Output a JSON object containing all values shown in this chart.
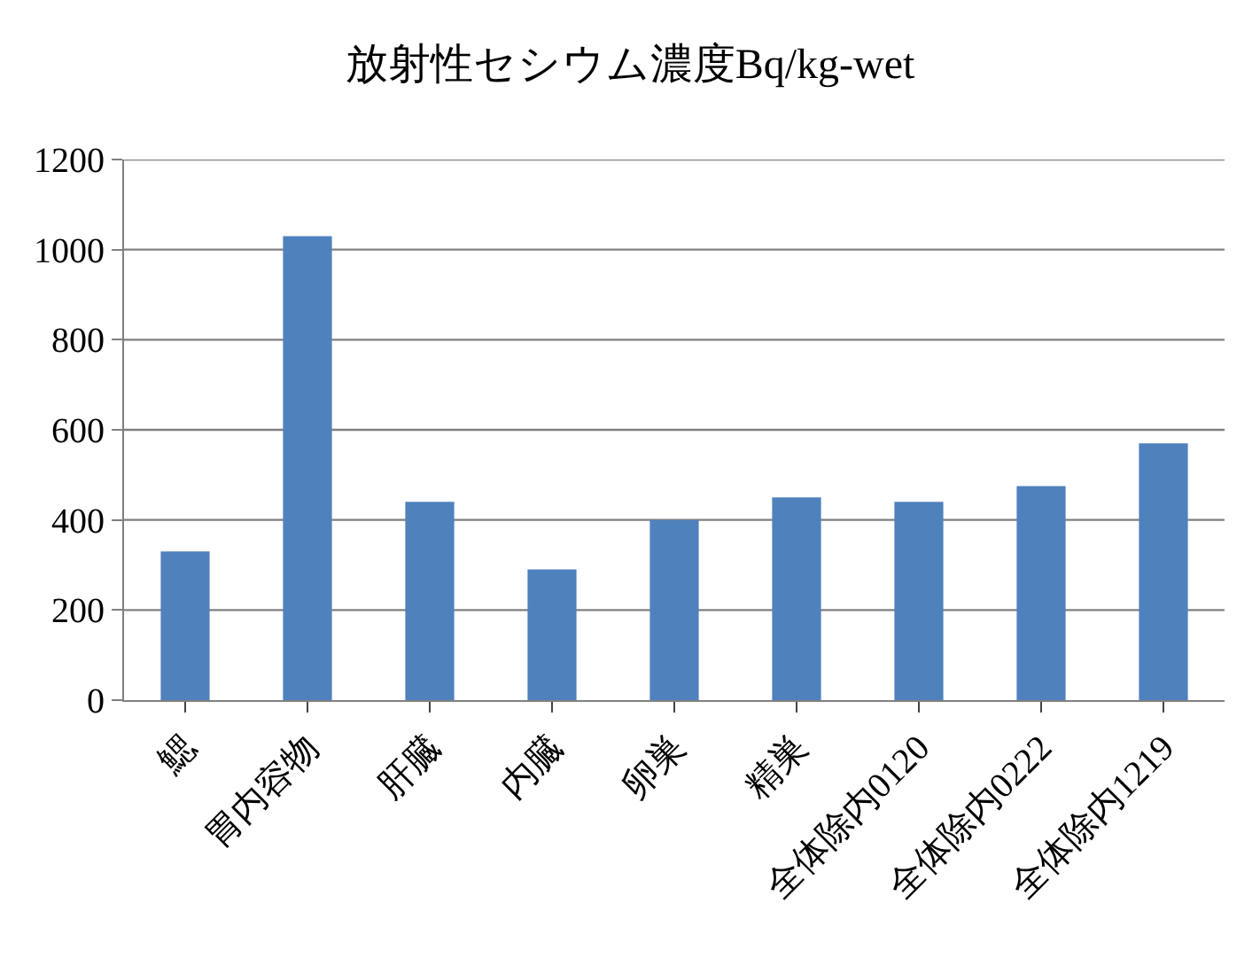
{
  "chart_data": {
    "type": "bar",
    "title": "放射性セシウム濃度Bq/kg-wet",
    "categories": [
      "鰓",
      "胃内容物",
      "肝臓",
      "内臓",
      "卵巣",
      "精巣",
      "全体除内0120",
      "全体除内0222",
      "全体除内1219"
    ],
    "values": [
      330,
      1030,
      440,
      290,
      400,
      450,
      440,
      475,
      570
    ],
    "color": "#4f81bd",
    "ylim": [
      0,
      1200
    ],
    "yticks": [
      0,
      200,
      400,
      600,
      800,
      1000,
      1200
    ],
    "grid": "y"
  }
}
